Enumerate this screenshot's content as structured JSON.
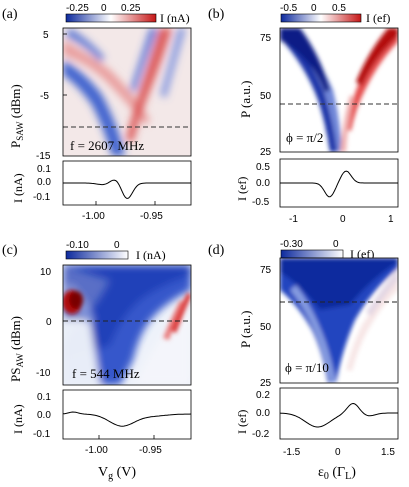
{
  "figure": {
    "panels": [
      {
        "id": "a",
        "label": "(a)",
        "colorbar_ticks": [
          "-0.25",
          "0",
          "0.25"
        ],
        "colorbar_unit": "I (nA)",
        "map_ylabel": "P",
        "map_ylabel_sub": "SAW",
        "map_ylabel_unit": " (dBm)",
        "map_yticks": [
          "5",
          "-5",
          "-15"
        ],
        "annotation": "f = 2607 MHz",
        "trace_ylabel": "I (nA)",
        "trace_yticks": [
          "0.1",
          "0.0",
          "-0.1"
        ],
        "xticks": [
          "-1.00",
          "-0.95"
        ],
        "xlabel": ""
      },
      {
        "id": "b",
        "label": "(b)",
        "colorbar_ticks": [
          "-0.5",
          "0",
          "0.5"
        ],
        "colorbar_unit": "I (ef)",
        "map_ylabel": "P (a.u.)",
        "map_yticks": [
          "75",
          "50",
          "25"
        ],
        "annotation": "ϕ = π/2",
        "trace_ylabel": "I (ef)",
        "trace_yticks": [
          "0.5",
          "0.0",
          "-0.5"
        ],
        "xticks": [
          "-1",
          "0",
          "1"
        ],
        "xlabel": ""
      },
      {
        "id": "c",
        "label": "(c)",
        "colorbar_ticks": [
          "-0.10",
          "0"
        ],
        "colorbar_unit": "I (nA)",
        "map_ylabel": "PS",
        "map_ylabel_sub": "AW",
        "map_ylabel_unit": " (dBm)",
        "map_yticks": [
          "10",
          "0",
          "-10"
        ],
        "annotation": "f = 544 MHz",
        "trace_ylabel": "I (nA)",
        "trace_yticks": [
          "0.1",
          "0.0",
          "-0.1"
        ],
        "xticks": [
          "-1.00",
          "-0.95"
        ],
        "xlabel": "V",
        "xlabel_sub": "g",
        "xlabel_unit": " (V)"
      },
      {
        "id": "d",
        "label": "(d)",
        "colorbar_ticks": [
          "-0.30",
          "0"
        ],
        "colorbar_unit": "I (ef)",
        "map_ylabel": "P (a.u.)",
        "map_yticks": [
          "75",
          "50",
          "25"
        ],
        "annotation": "ϕ = π/10",
        "trace_ylabel": "I (ef)",
        "trace_yticks": [
          "0.2",
          "0.0",
          "-0.2"
        ],
        "xticks": [
          "-1.5",
          "0",
          "1.5"
        ],
        "xlabel": "ε",
        "xlabel_sub": "0",
        "xlabel_unit": " (Γ",
        "xlabel_unit_sub": "L",
        "xlabel_unit_end": ")"
      }
    ],
    "colors": {
      "blue": "#1f3fbf",
      "red": "#d21f1f",
      "white": "#ffffff"
    }
  }
}
